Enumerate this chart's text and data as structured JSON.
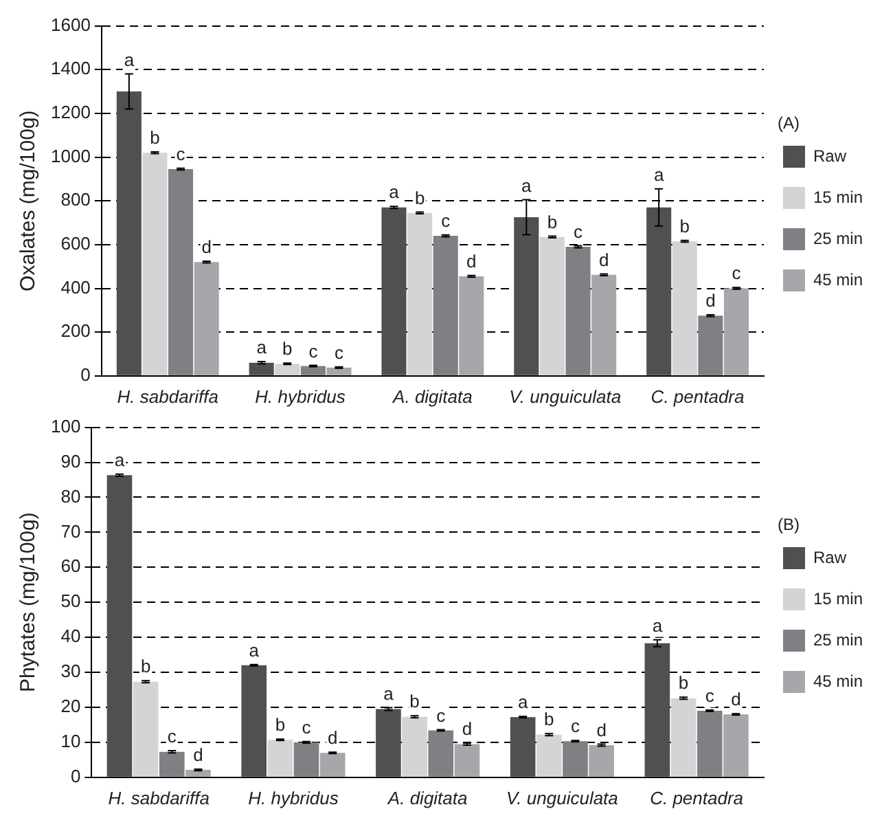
{
  "chart_data": [
    {
      "type": "bar",
      "ylabel": "Oxalates (mg/100g)",
      "annotations": [
        "(A)"
      ],
      "categories": [
        "H. sabdariffa",
        "H. hybridus",
        "A. digitata",
        "V. unguiculata",
        "C. pentadra"
      ],
      "ylim": [
        0,
        1600
      ],
      "yticks": [
        0,
        200,
        400,
        600,
        800,
        1000,
        1200,
        1400,
        1600
      ],
      "grid": "y",
      "legend": "right",
      "series": [
        {
          "name": "Raw",
          "color": "#505053",
          "values": [
            1300,
            60,
            770,
            725,
            770
          ],
          "errors": [
            80,
            5,
            5,
            80,
            85
          ],
          "value_labels": [
            "a",
            "a",
            "a",
            "a",
            "a"
          ]
        },
        {
          "name": "15 min",
          "color": "#d3d4d6",
          "values": [
            1020,
            55,
            745,
            635,
            615
          ],
          "errors": [
            4,
            3,
            4,
            4,
            4
          ],
          "value_labels": [
            "b",
            "b",
            "b",
            "b",
            "b"
          ]
        },
        {
          "name": "25 min",
          "color": "#7f8084",
          "values": [
            945,
            45,
            640,
            590,
            275
          ],
          "errors": [
            4,
            3,
            4,
            5,
            4
          ],
          "value_labels": [
            "c",
            "c",
            "c",
            "c",
            "d"
          ]
        },
        {
          "name": "45 min",
          "color": "#a6a7ab",
          "values": [
            520,
            38,
            455,
            462,
            400
          ],
          "errors": [
            4,
            3,
            4,
            4,
            4
          ],
          "value_labels": [
            "d",
            "c",
            "d",
            "d",
            "c"
          ]
        }
      ]
    },
    {
      "type": "bar",
      "ylabel": "Phytates (mg/100g)",
      "annotations": [
        "(B)"
      ],
      "categories": [
        "H. sabdariffa",
        "H. hybridus",
        "A. digitata",
        "V. unguiculata",
        "C. pentadra"
      ],
      "ylim": [
        0,
        100
      ],
      "yticks": [
        0,
        10,
        20,
        30,
        40,
        50,
        60,
        70,
        80,
        90,
        100
      ],
      "grid": "y",
      "legend": "right",
      "series": [
        {
          "name": "Raw",
          "color": "#505053",
          "values": [
            86.3,
            32,
            19.5,
            17.2,
            38.3
          ],
          "errors": [
            0.3,
            0.2,
            0.4,
            0.2,
            1
          ],
          "value_labels": [
            "a",
            "a",
            "a",
            "a",
            "a"
          ]
        },
        {
          "name": "15 min",
          "color": "#d3d4d6",
          "values": [
            27.3,
            10.7,
            17.3,
            12.2,
            22.6
          ],
          "errors": [
            0.3,
            0.2,
            0.3,
            0.3,
            0.3
          ],
          "value_labels": [
            "b",
            "b",
            "b",
            "b",
            "b"
          ]
        },
        {
          "name": "25 min",
          "color": "#7f8084",
          "values": [
            7.3,
            10,
            13.4,
            10.3,
            19
          ],
          "errors": [
            0.3,
            0.2,
            0.2,
            0.2,
            0.2
          ],
          "value_labels": [
            "c",
            "c",
            "c",
            "c",
            "c"
          ]
        },
        {
          "name": "45 min",
          "color": "#a6a7ab",
          "values": [
            2.1,
            7,
            9.5,
            9.2,
            18
          ],
          "errors": [
            0.2,
            0.2,
            0.3,
            0.3,
            0.2
          ],
          "value_labels": [
            "d",
            "d",
            "d",
            "d",
            "d"
          ]
        }
      ]
    }
  ]
}
